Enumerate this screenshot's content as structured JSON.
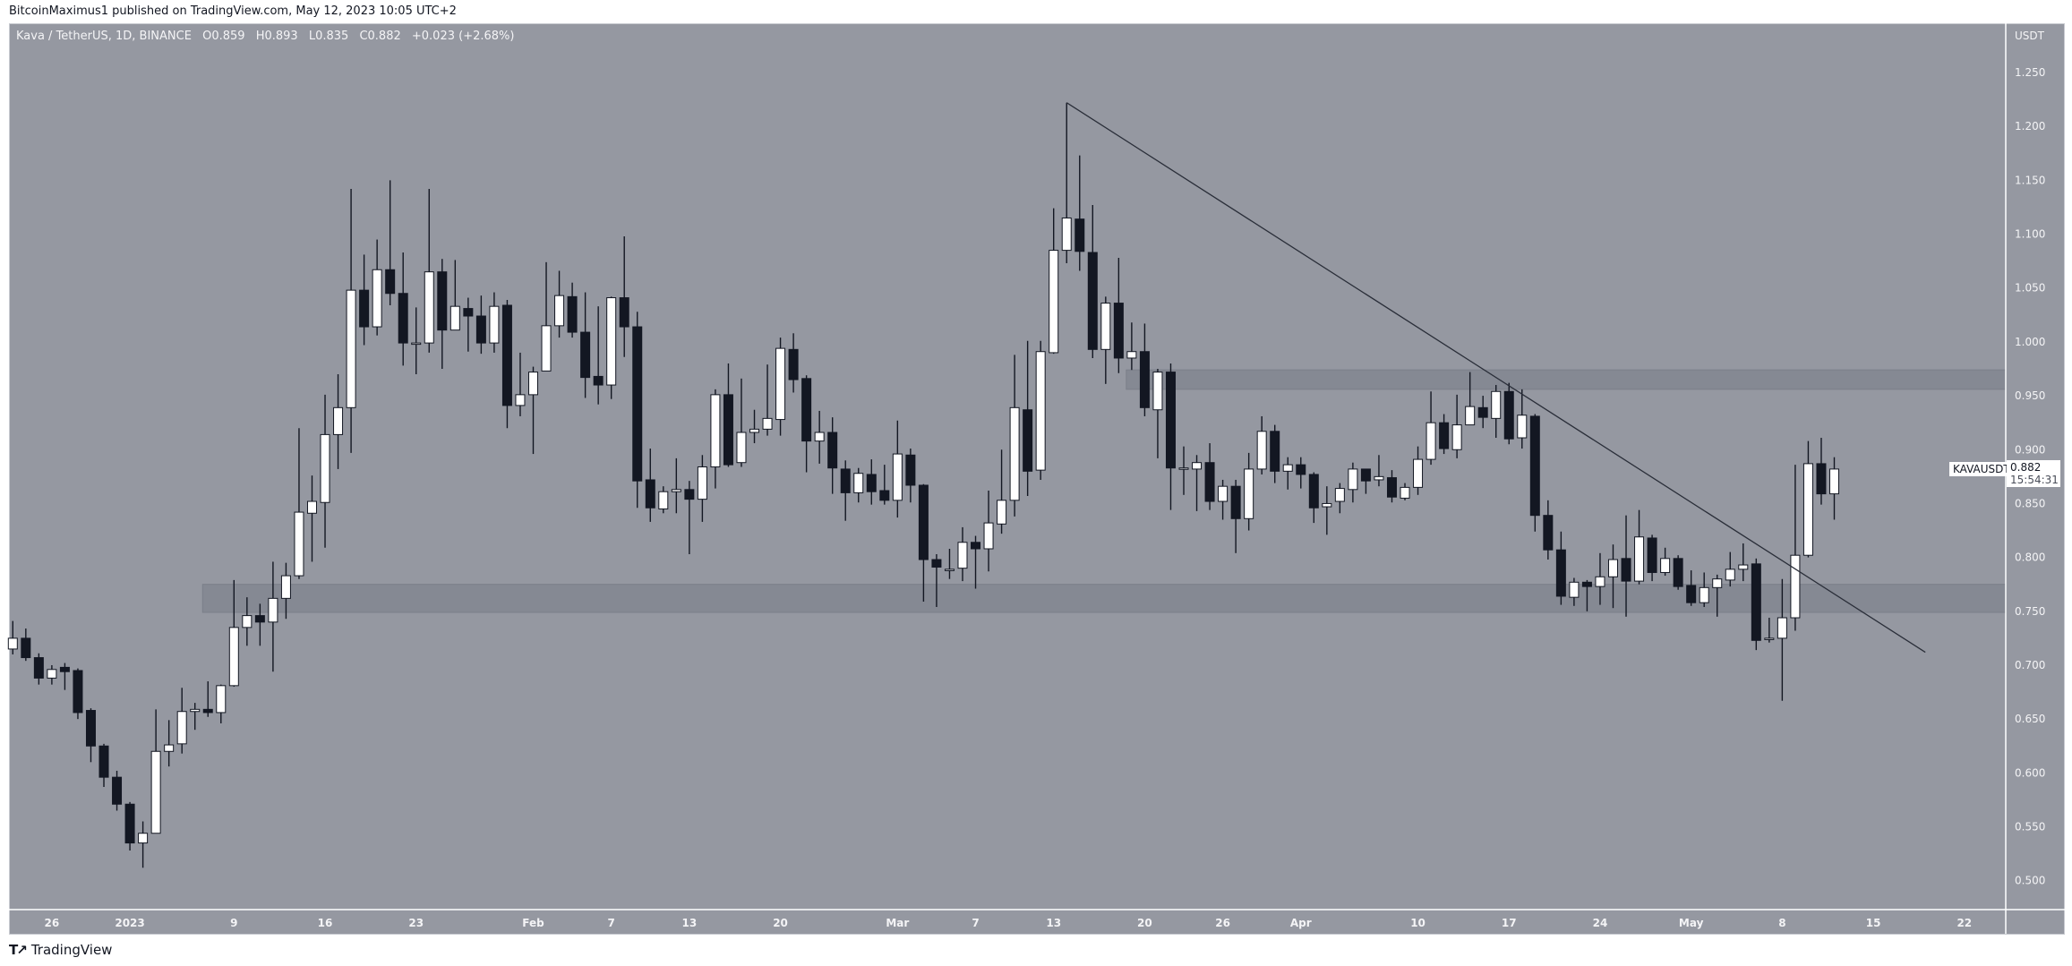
{
  "publish_line": "BitcoinMaximus1 published on TradingView.com, May 12, 2023 10:05 UTC+2",
  "legend": {
    "symbol": "Kava / TetherUS, 1D, BINANCE",
    "open": "O0.859",
    "high": "H0.893",
    "low": "L0.835",
    "close": "C0.882",
    "change": "+0.023 (+2.68%)"
  },
  "price_axis": {
    "unit": "USDT"
  },
  "last_price": {
    "symbol": "KAVAUSDT",
    "price": "0.882",
    "countdown": "15:54:31"
  },
  "branding": "TradingView",
  "colors": {
    "background": "#9598a1",
    "up_body": "#ffffff",
    "down_body": "#131722",
    "wick": "#131722",
    "zone": "#858993",
    "trendline": "#2a2e39"
  },
  "chart_data": {
    "type": "candlestick",
    "title": "Kava / TetherUS, 1D, BINANCE",
    "ylabel": "USDT",
    "ylim": [
      0.5,
      1.25
    ],
    "y_scale": "linear",
    "grid": false,
    "yticks": [
      "1.250",
      "1.200",
      "1.150",
      "1.100",
      "1.050",
      "1.000",
      "0.950",
      "0.900",
      "0.850",
      "0.800",
      "0.750",
      "0.700",
      "0.650",
      "0.600",
      "0.550",
      "0.500"
    ],
    "xticks": [
      {
        "label": "26",
        "date": "2022-12-26"
      },
      {
        "label": "2023",
        "date": "2023-01-01"
      },
      {
        "label": "9",
        "date": "2023-01-09"
      },
      {
        "label": "16",
        "date": "2023-01-16"
      },
      {
        "label": "23",
        "date": "2023-01-23"
      },
      {
        "label": "Feb",
        "date": "2023-02-01"
      },
      {
        "label": "7",
        "date": "2023-02-07"
      },
      {
        "label": "13",
        "date": "2023-02-13"
      },
      {
        "label": "20",
        "date": "2023-02-20"
      },
      {
        "label": "Mar",
        "date": "2023-03-01"
      },
      {
        "label": "7",
        "date": "2023-03-07"
      },
      {
        "label": "13",
        "date": "2023-03-13"
      },
      {
        "label": "20",
        "date": "2023-03-20"
      },
      {
        "label": "26",
        "date": "2023-03-26"
      },
      {
        "label": "Apr",
        "date": "2023-04-01"
      },
      {
        "label": "10",
        "date": "2023-04-10"
      },
      {
        "label": "17",
        "date": "2023-04-17"
      },
      {
        "label": "24",
        "date": "2023-04-24"
      },
      {
        "label": "May",
        "date": "2023-05-01"
      },
      {
        "label": "8",
        "date": "2023-05-08"
      },
      {
        "label": "15",
        "date": "2023-05-15"
      },
      {
        "label": "22",
        "date": "2023-05-22"
      }
    ],
    "ohlc_columns": [
      "date",
      "open",
      "high",
      "low",
      "close"
    ],
    "candles": [
      [
        "2022-12-23",
        0.715,
        0.741,
        0.71,
        0.725
      ],
      [
        "2022-12-24",
        0.725,
        0.734,
        0.704,
        0.707
      ],
      [
        "2022-12-25",
        0.707,
        0.711,
        0.682,
        0.688
      ],
      [
        "2022-12-26",
        0.688,
        0.7,
        0.682,
        0.696
      ],
      [
        "2022-12-27",
        0.698,
        0.702,
        0.677,
        0.694
      ],
      [
        "2022-12-28",
        0.695,
        0.697,
        0.65,
        0.656
      ],
      [
        "2022-12-29",
        0.658,
        0.66,
        0.61,
        0.625
      ],
      [
        "2022-12-30",
        0.625,
        0.627,
        0.587,
        0.596
      ],
      [
        "2022-12-31",
        0.596,
        0.602,
        0.565,
        0.571
      ],
      [
        "2023-01-01",
        0.571,
        0.573,
        0.528,
        0.535
      ],
      [
        "2023-01-02",
        0.535,
        0.555,
        0.512,
        0.544
      ],
      [
        "2023-01-03",
        0.544,
        0.659,
        0.544,
        0.62
      ],
      [
        "2023-01-04",
        0.62,
        0.649,
        0.606,
        0.626
      ],
      [
        "2023-01-05",
        0.627,
        0.679,
        0.618,
        0.657
      ],
      [
        "2023-01-06",
        0.657,
        0.665,
        0.64,
        0.659
      ],
      [
        "2023-01-07",
        0.659,
        0.685,
        0.652,
        0.656
      ],
      [
        "2023-01-08",
        0.656,
        0.682,
        0.646,
        0.681
      ],
      [
        "2023-01-09",
        0.681,
        0.779,
        0.68,
        0.735
      ],
      [
        "2023-01-10",
        0.735,
        0.763,
        0.718,
        0.746
      ],
      [
        "2023-01-11",
        0.746,
        0.757,
        0.718,
        0.74
      ],
      [
        "2023-01-12",
        0.74,
        0.796,
        0.694,
        0.762
      ],
      [
        "2023-01-13",
        0.762,
        0.795,
        0.743,
        0.783
      ],
      [
        "2023-01-14",
        0.783,
        0.92,
        0.78,
        0.842
      ],
      [
        "2023-01-15",
        0.841,
        0.876,
        0.796,
        0.852
      ],
      [
        "2023-01-16",
        0.851,
        0.951,
        0.809,
        0.914
      ],
      [
        "2023-01-17",
        0.914,
        0.97,
        0.882,
        0.939
      ],
      [
        "2023-01-18",
        0.939,
        1.142,
        0.897,
        1.048
      ],
      [
        "2023-01-19",
        1.048,
        1.081,
        0.997,
        1.014
      ],
      [
        "2023-01-20",
        1.014,
        1.095,
        1.006,
        1.067
      ],
      [
        "2023-01-21",
        1.067,
        1.15,
        1.034,
        1.045
      ],
      [
        "2023-01-22",
        1.045,
        1.083,
        0.978,
        0.999
      ],
      [
        "2023-01-23",
        0.999,
        1.032,
        0.97,
        0.999
      ],
      [
        "2023-01-24",
        0.999,
        1.142,
        0.99,
        1.065
      ],
      [
        "2023-01-25",
        1.065,
        1.077,
        0.975,
        1.011
      ],
      [
        "2023-01-26",
        1.011,
        1.076,
        1.011,
        1.033
      ],
      [
        "2023-01-27",
        1.031,
        1.041,
        0.991,
        1.024
      ],
      [
        "2023-01-28",
        1.024,
        1.043,
        0.989,
        0.999
      ],
      [
        "2023-01-29",
        0.999,
        1.046,
        0.99,
        1.033
      ],
      [
        "2023-01-30",
        1.034,
        1.039,
        0.92,
        0.941
      ],
      [
        "2023-01-31",
        0.941,
        0.99,
        0.931,
        0.951
      ],
      [
        "2023-02-01",
        0.951,
        0.977,
        0.896,
        0.972
      ],
      [
        "2023-02-02",
        0.973,
        1.074,
        0.973,
        1.015
      ],
      [
        "2023-02-03",
        1.015,
        1.066,
        1.004,
        1.043
      ],
      [
        "2023-02-04",
        1.042,
        1.055,
        1.004,
        1.009
      ],
      [
        "2023-02-05",
        1.009,
        1.046,
        0.948,
        0.967
      ],
      [
        "2023-02-06",
        0.968,
        1.033,
        0.942,
        0.96
      ],
      [
        "2023-02-07",
        0.96,
        1.042,
        0.947,
        1.041
      ],
      [
        "2023-02-08",
        1.041,
        1.098,
        0.986,
        1.014
      ],
      [
        "2023-02-09",
        1.014,
        1.028,
        0.846,
        0.871
      ],
      [
        "2023-02-10",
        0.872,
        0.901,
        0.833,
        0.846
      ],
      [
        "2023-02-11",
        0.845,
        0.866,
        0.841,
        0.861
      ],
      [
        "2023-02-12",
        0.861,
        0.892,
        0.841,
        0.863
      ],
      [
        "2023-02-13",
        0.863,
        0.871,
        0.803,
        0.854
      ],
      [
        "2023-02-14",
        0.854,
        0.895,
        0.833,
        0.884
      ],
      [
        "2023-02-15",
        0.884,
        0.956,
        0.864,
        0.951
      ],
      [
        "2023-02-16",
        0.951,
        0.98,
        0.884,
        0.886
      ],
      [
        "2023-02-17",
        0.888,
        0.966,
        0.884,
        0.916
      ],
      [
        "2023-02-18",
        0.916,
        0.937,
        0.906,
        0.919
      ],
      [
        "2023-02-19",
        0.919,
        0.979,
        0.913,
        0.929
      ],
      [
        "2023-02-20",
        0.928,
        1.004,
        0.913,
        0.994
      ],
      [
        "2023-02-21",
        0.993,
        1.008,
        0.953,
        0.965
      ],
      [
        "2023-02-22",
        0.966,
        0.969,
        0.879,
        0.908
      ],
      [
        "2023-02-23",
        0.908,
        0.936,
        0.887,
        0.916
      ],
      [
        "2023-02-24",
        0.916,
        0.93,
        0.859,
        0.883
      ],
      [
        "2023-02-25",
        0.882,
        0.89,
        0.834,
        0.86
      ],
      [
        "2023-02-26",
        0.86,
        0.883,
        0.851,
        0.878
      ],
      [
        "2023-02-27",
        0.877,
        0.891,
        0.849,
        0.861
      ],
      [
        "2023-02-28",
        0.862,
        0.886,
        0.849,
        0.853
      ],
      [
        "2023-03-01",
        0.853,
        0.927,
        0.837,
        0.896
      ],
      [
        "2023-03-02",
        0.895,
        0.901,
        0.851,
        0.867
      ],
      [
        "2023-03-03",
        0.867,
        0.868,
        0.759,
        0.798
      ],
      [
        "2023-03-04",
        0.798,
        0.803,
        0.754,
        0.791
      ],
      [
        "2023-03-05",
        0.789,
        0.808,
        0.78,
        0.789
      ],
      [
        "2023-03-06",
        0.79,
        0.828,
        0.778,
        0.814
      ],
      [
        "2023-03-07",
        0.814,
        0.82,
        0.771,
        0.808
      ],
      [
        "2023-03-08",
        0.808,
        0.862,
        0.787,
        0.832
      ],
      [
        "2023-03-09",
        0.831,
        0.9,
        0.822,
        0.853
      ],
      [
        "2023-03-10",
        0.853,
        0.988,
        0.838,
        0.939
      ],
      [
        "2023-03-11",
        0.937,
        1.001,
        0.857,
        0.88
      ],
      [
        "2023-03-12",
        0.881,
        1.001,
        0.872,
        0.991
      ],
      [
        "2023-03-13",
        0.99,
        1.124,
        0.989,
        1.085
      ],
      [
        "2023-03-14",
        1.085,
        1.222,
        1.073,
        1.115
      ],
      [
        "2023-03-15",
        1.114,
        1.173,
        1.066,
        1.084
      ],
      [
        "2023-03-16",
        1.083,
        1.127,
        0.985,
        0.993
      ],
      [
        "2023-03-17",
        0.993,
        1.042,
        0.961,
        1.036
      ],
      [
        "2023-03-18",
        1.036,
        1.078,
        0.971,
        0.985
      ],
      [
        "2023-03-19",
        0.985,
        1.018,
        0.974,
        0.991
      ],
      [
        "2023-03-20",
        0.991,
        1.017,
        0.931,
        0.939
      ],
      [
        "2023-03-21",
        0.937,
        0.975,
        0.892,
        0.972
      ],
      [
        "2023-03-22",
        0.972,
        0.98,
        0.844,
        0.883
      ],
      [
        "2023-03-23",
        0.883,
        0.903,
        0.858,
        0.883
      ],
      [
        "2023-03-24",
        0.882,
        0.895,
        0.843,
        0.888
      ],
      [
        "2023-03-25",
        0.888,
        0.906,
        0.844,
        0.852
      ],
      [
        "2023-03-26",
        0.852,
        0.872,
        0.835,
        0.866
      ],
      [
        "2023-03-27",
        0.866,
        0.872,
        0.804,
        0.836
      ],
      [
        "2023-03-28",
        0.836,
        0.897,
        0.825,
        0.882
      ],
      [
        "2023-03-29",
        0.882,
        0.931,
        0.877,
        0.917
      ],
      [
        "2023-03-30",
        0.917,
        0.923,
        0.869,
        0.88
      ],
      [
        "2023-03-31",
        0.88,
        0.893,
        0.863,
        0.886
      ],
      [
        "2023-04-01",
        0.886,
        0.893,
        0.864,
        0.877
      ],
      [
        "2023-04-02",
        0.877,
        0.879,
        0.832,
        0.846
      ],
      [
        "2023-04-03",
        0.847,
        0.866,
        0.821,
        0.85
      ],
      [
        "2023-04-04",
        0.852,
        0.869,
        0.841,
        0.864
      ],
      [
        "2023-04-05",
        0.863,
        0.888,
        0.851,
        0.882
      ],
      [
        "2023-04-06",
        0.882,
        0.882,
        0.859,
        0.871
      ],
      [
        "2023-04-07",
        0.872,
        0.895,
        0.866,
        0.875
      ],
      [
        "2023-04-08",
        0.874,
        0.881,
        0.851,
        0.856
      ],
      [
        "2023-04-09",
        0.855,
        0.869,
        0.853,
        0.865
      ],
      [
        "2023-04-10",
        0.865,
        0.903,
        0.858,
        0.891
      ],
      [
        "2023-04-11",
        0.891,
        0.954,
        0.886,
        0.925
      ],
      [
        "2023-04-12",
        0.925,
        0.933,
        0.896,
        0.901
      ],
      [
        "2023-04-13",
        0.9,
        0.951,
        0.892,
        0.923
      ],
      [
        "2023-04-14",
        0.923,
        0.972,
        0.923,
        0.94
      ],
      [
        "2023-04-15",
        0.939,
        0.95,
        0.92,
        0.93
      ],
      [
        "2023-04-16",
        0.929,
        0.96,
        0.911,
        0.954
      ],
      [
        "2023-04-17",
        0.954,
        0.962,
        0.905,
        0.91
      ],
      [
        "2023-04-18",
        0.911,
        0.956,
        0.901,
        0.932
      ],
      [
        "2023-04-19",
        0.931,
        0.933,
        0.824,
        0.839
      ],
      [
        "2023-04-20",
        0.839,
        0.853,
        0.798,
        0.807
      ],
      [
        "2023-04-21",
        0.807,
        0.824,
        0.756,
        0.764
      ],
      [
        "2023-04-22",
        0.763,
        0.781,
        0.755,
        0.777
      ],
      [
        "2023-04-23",
        0.777,
        0.779,
        0.75,
        0.773
      ],
      [
        "2023-04-24",
        0.773,
        0.804,
        0.756,
        0.782
      ],
      [
        "2023-04-25",
        0.782,
        0.812,
        0.753,
        0.798
      ],
      [
        "2023-04-26",
        0.799,
        0.839,
        0.745,
        0.778
      ],
      [
        "2023-04-27",
        0.778,
        0.844,
        0.775,
        0.819
      ],
      [
        "2023-04-28",
        0.818,
        0.821,
        0.778,
        0.786
      ],
      [
        "2023-04-29",
        0.786,
        0.809,
        0.783,
        0.799
      ],
      [
        "2023-04-30",
        0.799,
        0.802,
        0.77,
        0.773
      ],
      [
        "2023-05-01",
        0.774,
        0.788,
        0.755,
        0.758
      ],
      [
        "2023-05-02",
        0.758,
        0.786,
        0.754,
        0.772
      ],
      [
        "2023-05-03",
        0.772,
        0.784,
        0.745,
        0.78
      ],
      [
        "2023-05-04",
        0.779,
        0.805,
        0.773,
        0.789
      ],
      [
        "2023-05-05",
        0.789,
        0.813,
        0.778,
        0.793
      ],
      [
        "2023-05-06",
        0.794,
        0.799,
        0.714,
        0.723
      ],
      [
        "2023-05-07",
        0.724,
        0.744,
        0.721,
        0.725
      ],
      [
        "2023-05-08",
        0.725,
        0.78,
        0.667,
        0.744
      ],
      [
        "2023-05-09",
        0.744,
        0.886,
        0.732,
        0.802
      ],
      [
        "2023-05-10",
        0.802,
        0.908,
        0.8,
        0.887
      ],
      [
        "2023-05-11",
        0.887,
        0.911,
        0.849,
        0.859
      ],
      [
        "2023-05-12",
        0.859,
        0.893,
        0.835,
        0.882
      ]
    ],
    "zones": [
      {
        "from_date": "2023-01-07",
        "bottom": 0.749,
        "top": 0.775
      },
      {
        "from_date": "2023-03-19",
        "bottom": 0.956,
        "top": 0.974
      }
    ],
    "trendline": {
      "start": {
        "date": "2023-03-14",
        "price": 1.222
      },
      "end": {
        "date": "2023-05-19",
        "price": 0.712
      }
    }
  }
}
